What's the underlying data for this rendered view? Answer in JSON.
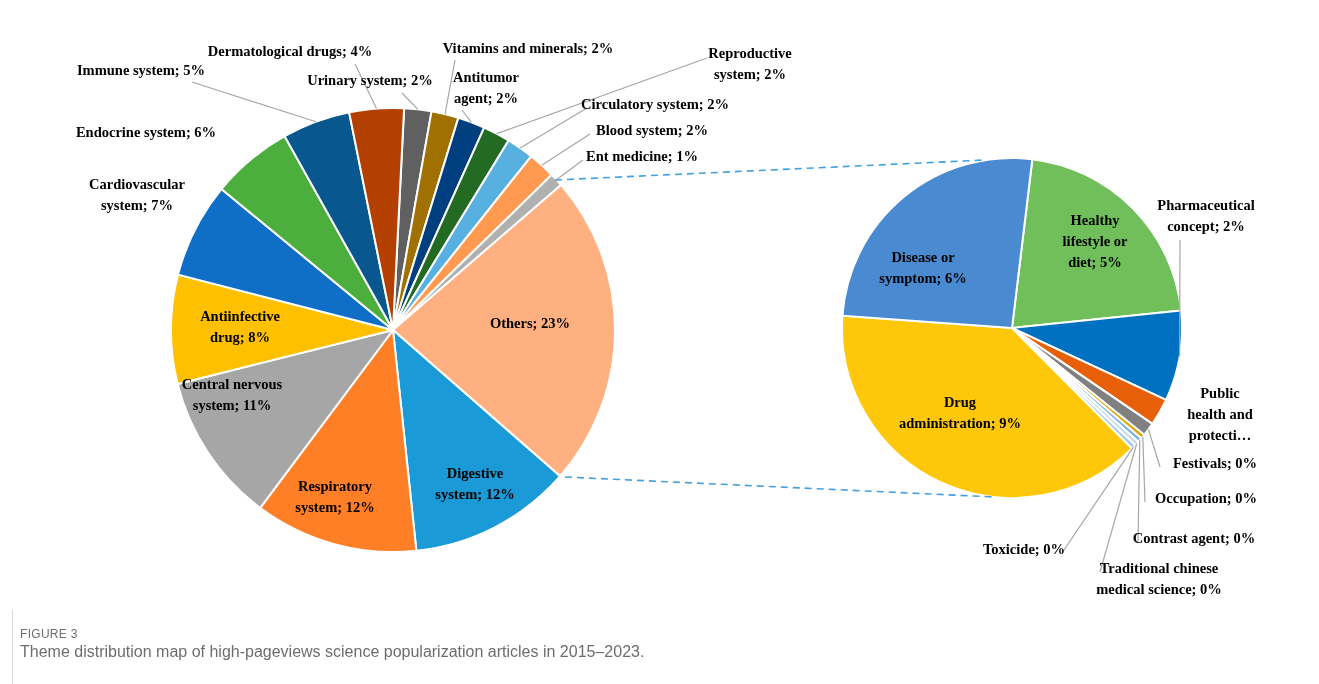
{
  "chart_data": [
    {
      "type": "pie",
      "title": "FIGURE 3",
      "subtitle": "Theme distribution map of high-pageviews science popularization articles in 2015–2023.",
      "categories": [
        "Urinary system",
        "Vitamins and minerals",
        "Antitumor agent",
        "Reproductive system",
        "Circulatory system",
        "Blood system",
        "Ent medicine",
        "Others",
        "Digestive system",
        "Respiratory system",
        "Central nervous system",
        "Antiinfective drug",
        "Cardiovascular system",
        "Endocrine system",
        "Immune system",
        "Dermatological drugs"
      ],
      "values": [
        2,
        2,
        2,
        2,
        2,
        2,
        1,
        23,
        12,
        12,
        11,
        8,
        7,
        6,
        5,
        4
      ],
      "value_labels": [
        "2%",
        "2%",
        "2%",
        "2%",
        "2%",
        "2%",
        "1%",
        "23%",
        "12%",
        "12%",
        "11%",
        "8%",
        "7%",
        "6%",
        "5%",
        "4%"
      ],
      "colors": [
        "#606060",
        "#a07000",
        "#003f7f",
        "#236b23",
        "#58b0e0",
        "#ff9a50",
        "#b0b0b0",
        "#ffb080",
        "#1a9ad6",
        "#ff7f27",
        "#a6a6a6",
        "#ffc000",
        "#0f6fc6",
        "#4cae3c",
        "#09578f",
        "#b34000"
      ]
    },
    {
      "type": "pie",
      "categories": [
        "Healthy lifestyle or diet",
        "Pharmaceutical concept",
        "Public health and protecti…",
        "Festivals",
        "Occupation",
        "Contrast agent",
        "Traditional chinese medical science",
        "Toxicide",
        "Drug administration",
        "Disease or symptom"
      ],
      "values": [
        5,
        2,
        0.6,
        0.3,
        0.1,
        0.1,
        0.1,
        0.1,
        9,
        6
      ],
      "value_labels": [
        "5%",
        "2%",
        null,
        "0%",
        "0%",
        "0%",
        "0%",
        "0%",
        "9%",
        "6%"
      ],
      "colors": [
        "#70bf5a",
        "#0070c0",
        "#e85f0a",
        "#808080",
        "#e0a000",
        "#7fb4e0",
        "#c8dcf0",
        "#9fc8e8",
        "#ffc70a",
        "#4a8ad0"
      ]
    }
  ]
}
